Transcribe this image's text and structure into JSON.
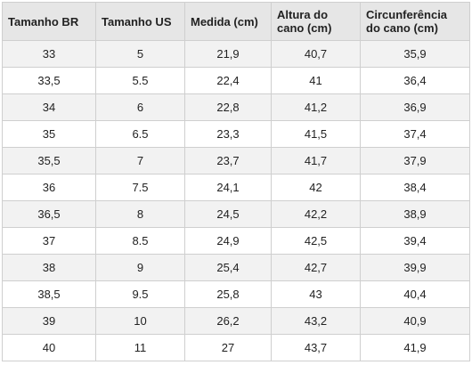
{
  "table": {
    "header": [
      "Tamanho BR",
      "Tamanho US",
      "Medida (cm)",
      "Altura do cano (cm)",
      "Circunferência do cano (cm)"
    ],
    "rows": [
      [
        "33",
        "5",
        "21,9",
        "40,7",
        "35,9"
      ],
      [
        "33,5",
        "5.5",
        "22,4",
        "41",
        "36,4"
      ],
      [
        "34",
        "6",
        "22,8",
        "41,2",
        "36,9"
      ],
      [
        "35",
        "6.5",
        "23,3",
        "41,5",
        "37,4"
      ],
      [
        "35,5",
        "7",
        "23,7",
        "41,7",
        "37,9"
      ],
      [
        "36",
        "7.5",
        "24,1",
        "42",
        "38,4"
      ],
      [
        "36,5",
        "8",
        "24,5",
        "42,2",
        "38,9"
      ],
      [
        "37",
        "8.5",
        "24,9",
        "42,5",
        "39,4"
      ],
      [
        "38",
        "9",
        "25,4",
        "42,7",
        "39,9"
      ],
      [
        "38,5",
        "9.5",
        "25,8",
        "43",
        "40,4"
      ],
      [
        "39",
        "10",
        "26,2",
        "43,2",
        "40,9"
      ],
      [
        "40",
        "11",
        "27",
        "43,7",
        "41,9"
      ]
    ]
  }
}
